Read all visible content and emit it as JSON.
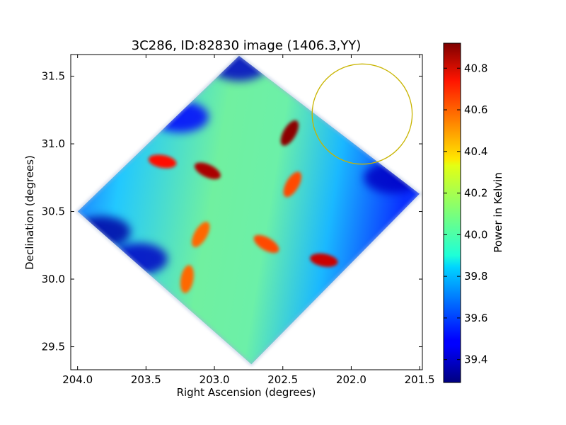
{
  "chart_data": {
    "type": "heatmap",
    "title": "3C286, ID:82830 image (1406.3,YY)",
    "xlabel": "Right Ascension (degrees)",
    "ylabel": "Declination (degrees)",
    "xlim": [
      204.05,
      201.48
    ],
    "ylim": [
      29.33,
      31.66
    ],
    "x_ticks": [
      {
        "value": 204.0,
        "label": "204.0"
      },
      {
        "value": 203.5,
        "label": "203.5"
      },
      {
        "value": 203.0,
        "label": "203.0"
      },
      {
        "value": 202.5,
        "label": "202.5"
      },
      {
        "value": 202.0,
        "label": "202.0"
      },
      {
        "value": 201.5,
        "label": "201.5"
      }
    ],
    "y_ticks": [
      {
        "value": 29.5,
        "label": "29.5"
      },
      {
        "value": 30.0,
        "label": "30.0"
      },
      {
        "value": 30.5,
        "label": "30.5"
      },
      {
        "value": 31.0,
        "label": "31.0"
      },
      {
        "value": 31.5,
        "label": "31.5"
      }
    ],
    "colorbar": {
      "label": "Power in Kelvin",
      "colormap": "jet",
      "range": [
        39.29,
        40.92
      ],
      "ticks": [
        {
          "value": 39.4,
          "label": "39.4"
        },
        {
          "value": 39.6,
          "label": "39.6"
        },
        {
          "value": 39.8,
          "label": "39.8"
        },
        {
          "value": 40.0,
          "label": "40.0"
        },
        {
          "value": 40.2,
          "label": "40.2"
        },
        {
          "value": 40.4,
          "label": "40.4"
        },
        {
          "value": 40.6,
          "label": "40.6"
        },
        {
          "value": 40.8,
          "label": "40.8"
        }
      ]
    },
    "map_footprint_vertices": [
      {
        "ra": 204.0,
        "dec": 30.5
      },
      {
        "ra": 202.82,
        "dec": 31.65
      },
      {
        "ra": 201.5,
        "dec": 30.63
      },
      {
        "ra": 202.73,
        "dec": 29.37
      }
    ],
    "field_circle": {
      "center_ra": 201.92,
      "center_dec": 31.22,
      "radius_dec": 0.37,
      "color": "#c8b400"
    },
    "features": [
      {
        "kind": "hot",
        "ra": 202.45,
        "dec": 31.08,
        "value": 40.9
      },
      {
        "kind": "hot",
        "ra": 203.05,
        "dec": 30.8,
        "value": 40.85
      },
      {
        "kind": "hot",
        "ra": 203.38,
        "dec": 30.87,
        "value": 40.7
      },
      {
        "kind": "hot",
        "ra": 202.43,
        "dec": 30.7,
        "value": 40.6
      },
      {
        "kind": "hot",
        "ra": 203.1,
        "dec": 30.33,
        "value": 40.55
      },
      {
        "kind": "hot",
        "ra": 202.62,
        "dec": 30.26,
        "value": 40.6
      },
      {
        "kind": "hot",
        "ra": 203.2,
        "dec": 30.0,
        "value": 40.55
      },
      {
        "kind": "hot",
        "ra": 202.2,
        "dec": 30.14,
        "value": 40.8
      },
      {
        "kind": "cold",
        "ra": 202.82,
        "dec": 31.58,
        "value": 39.4
      },
      {
        "kind": "cold",
        "ra": 203.55,
        "dec": 30.15,
        "value": 39.4
      },
      {
        "kind": "cold",
        "ra": 201.7,
        "dec": 30.75,
        "value": 39.4
      },
      {
        "kind": "cold",
        "ra": 203.82,
        "dec": 30.35,
        "value": 39.35
      },
      {
        "kind": "cold",
        "ra": 203.25,
        "dec": 31.2,
        "value": 39.5
      }
    ]
  }
}
